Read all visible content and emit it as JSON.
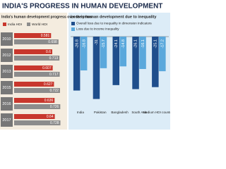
{
  "title": "INDIA'S PROGRESS IN HUMAN DEVELOPMENT",
  "chart_data": [
    {
      "type": "hbar",
      "title": "India's human development progress over the years",
      "categories": [
        "2010",
        "2012",
        "2013",
        "2015",
        "2016",
        "2017"
      ],
      "series": [
        {
          "name": "India HDI",
          "color": "#c8372d",
          "values": [
            0.581,
            0.6,
            0.607,
            0.627,
            0.636,
            0.64
          ]
        },
        {
          "name": "World HDI",
          "color": "#8c8c8c",
          "values": [
            0.698,
            0.713,
            0.717,
            0.722,
            0.726,
            0.728
          ]
        }
      ],
      "xlim": [
        0,
        0.8
      ]
    },
    {
      "type": "bar",
      "title": "Loss in human development due to inequality",
      "categories": [
        "India",
        "Pakistan",
        "Bangladesh",
        "South Asia",
        "Medium HDI countries"
      ],
      "series": [
        {
          "name": "Overall loss due to inequality in dimension indicators",
          "color": "#1f4e8c",
          "values": [
            -26.8,
            -31.0,
            -24.1,
            -26.1,
            -25.1
          ]
        },
        {
          "name": "Loss due to income inequality",
          "color": "#5aa8dc",
          "values": [
            -16.8,
            -15.7,
            -14.8,
            -16.1,
            -17.2
          ]
        }
      ],
      "ylim": [
        -35,
        0
      ]
    }
  ]
}
